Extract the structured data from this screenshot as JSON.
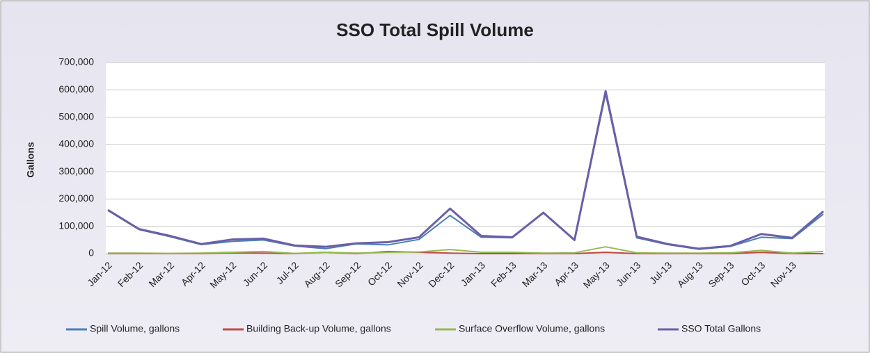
{
  "chart_data": {
    "type": "line",
    "title": "SSO Total Spill Volume",
    "y_label": "Gallons",
    "categories": [
      "Jan-12",
      "Feb-12",
      "Mar-12",
      "Apr-12",
      "May-12",
      "Jun-12",
      "Jul-12",
      "Aug-12",
      "Sep-12",
      "Oct-12",
      "Nov-12",
      "Dec-12",
      "Jan-13",
      "Feb-13",
      "Mar-13",
      "Apr-13",
      "May-13",
      "Jun-13",
      "Jul-13",
      "Aug-13",
      "Sep-13",
      "Oct-13",
      "Nov-13",
      null
    ],
    "series": [
      {
        "name": "Spill Volume, gallons",
        "color": "#4a7ebb",
        "values": [
          158000,
          88000,
          62000,
          33000,
          45000,
          50000,
          28000,
          18000,
          36000,
          32000,
          52000,
          140000,
          60000,
          58000,
          150000,
          48000,
          585000,
          58000,
          33000,
          16000,
          26000,
          60000,
          55000,
          145000
        ]
      },
      {
        "name": "Building Back-up Volume, gallons",
        "color": "#be4b48",
        "values": [
          0,
          0,
          0,
          0,
          3000,
          2000,
          0,
          5000,
          0,
          8000,
          5000,
          2000,
          0,
          0,
          0,
          0,
          5000,
          0,
          0,
          0,
          0,
          5000,
          0,
          0
        ]
      },
      {
        "name": "Surface Overflow Volume, gallons",
        "color": "#98b954",
        "values": [
          2000,
          2000,
          1000,
          2000,
          5000,
          8000,
          1000,
          5000,
          2000,
          5000,
          6000,
          15000,
          5000,
          5000,
          2000,
          3000,
          25000,
          3000,
          2000,
          2000,
          3000,
          12000,
          2000,
          8000
        ]
      },
      {
        "name": "SSO Total Gallons",
        "color": "#6a5fa8",
        "values": [
          160000,
          90000,
          65000,
          35000,
          52000,
          55000,
          30000,
          25000,
          38000,
          42000,
          60000,
          165000,
          65000,
          60000,
          150000,
          50000,
          595000,
          62000,
          35000,
          18000,
          28000,
          72000,
          58000,
          155000
        ]
      }
    ],
    "ylim": [
      0,
      700000
    ],
    "yticks": [
      0,
      {
        "value": 100000,
        "label": "100,000"
      },
      {
        "value": 200000,
        "label": "200,000"
      },
      {
        "value": 300000,
        "label": "300,000"
      },
      {
        "value": 400000,
        "label": "400,000"
      },
      {
        "value": 500000,
        "label": "500,000"
      },
      {
        "value": 600000,
        "label": "600,000"
      },
      {
        "value": 700000,
        "label": "700,000"
      }
    ],
    "grid": true,
    "legend": "bottom"
  }
}
